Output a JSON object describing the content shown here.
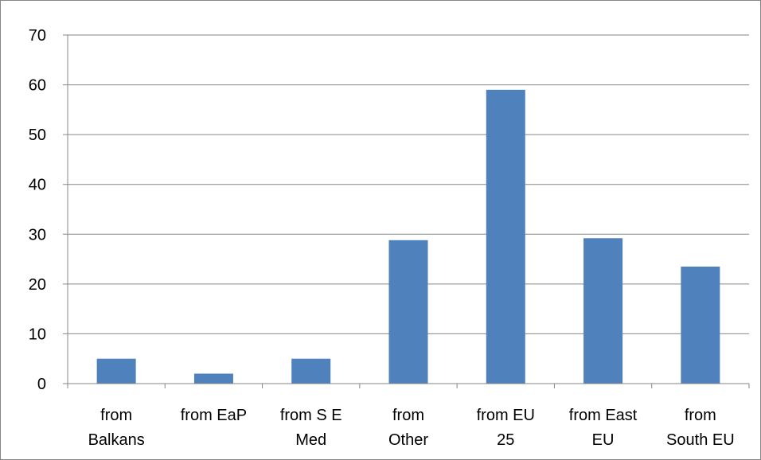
{
  "chart_data": {
    "type": "bar",
    "title": "",
    "xlabel": "",
    "ylabel": "",
    "categories": [
      [
        "from",
        "Balkans"
      ],
      [
        "from EaP"
      ],
      [
        "from S E",
        "Med"
      ],
      [
        "from",
        "Other"
      ],
      [
        "from EU",
        "25"
      ],
      [
        "from East",
        "EU"
      ],
      [
        "from",
        "South EU"
      ]
    ],
    "values": [
      5,
      2,
      5,
      28.8,
      59,
      29.2,
      23.5
    ],
    "ylim": [
      0,
      70
    ],
    "yticks": [
      "0",
      "10",
      "20",
      "30",
      "40",
      "50",
      "60",
      "70"
    ],
    "grid": true,
    "legend": "none",
    "colors": {
      "bar": "#4f81bd",
      "grid": "#868686",
      "axis": "#868686"
    }
  }
}
